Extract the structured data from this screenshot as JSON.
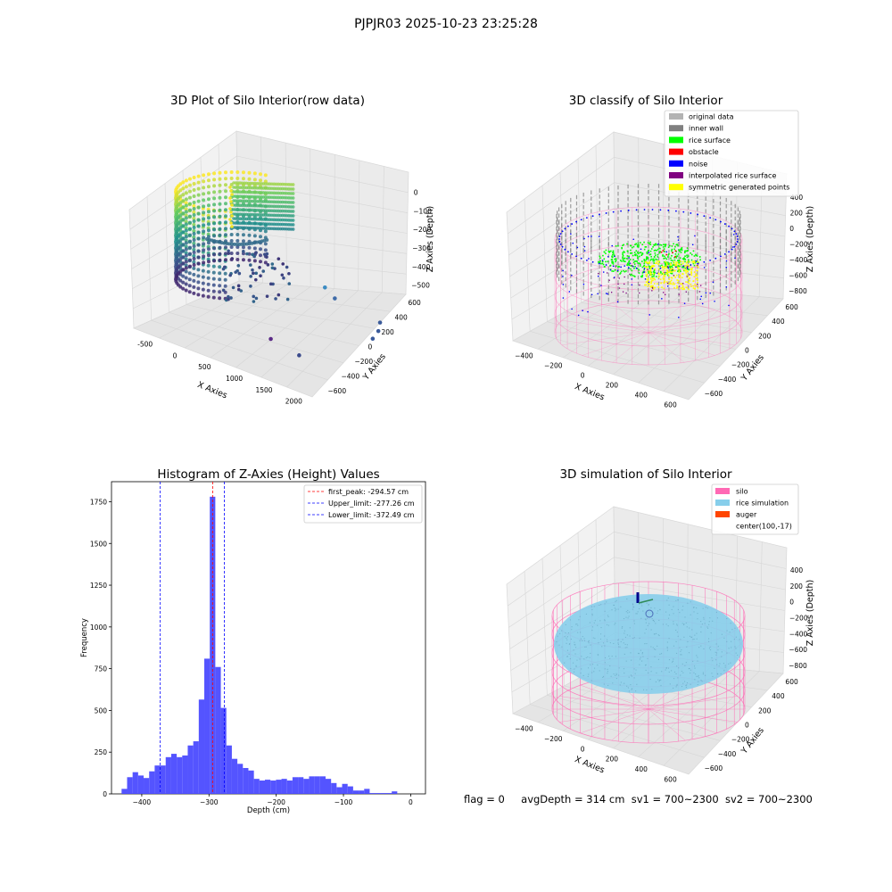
{
  "figure": {
    "title": "PJPJR03 2025-10-23 23:25:28",
    "status": {
      "flag": "flag = 0",
      "avg_depth": "avgDepth = 314 cm",
      "sv1": "sv1 = 700~2300",
      "sv2": "sv2 = 700~2300"
    }
  },
  "colors": {
    "histogram_bar": "#4b4bff",
    "first_peak_line": "#ff0000",
    "limit_lines": "#0000ff",
    "original_data": "#b3b3b3",
    "inner_wall": "#808080",
    "rice_surface": "#00ff00",
    "obstacle": "#ff0000",
    "noise": "#0000ff",
    "interpolated_rice_surface": "#800080",
    "symmetric_generated_points": "#ffff00",
    "silo": "#ff69b4",
    "rice_simulation": "#87ceeb",
    "auger": "#ff4500"
  },
  "chart_data": [
    {
      "type": "scatter",
      "title": "3D Plot of Silo Interior(row data)",
      "xlabel": "X Axies",
      "ylabel": "Y Axies",
      "zlabel": "Z Axies (Depth)",
      "x_ticks": [
        "-500",
        "0",
        "500",
        "1000",
        "1500",
        "2000"
      ],
      "y_ticks": [
        "600",
        "400",
        "200",
        "0",
        "−200",
        "−400",
        "−600"
      ],
      "z_ticks": [
        "0",
        "−100",
        "−200",
        "−300",
        "−400",
        "−500"
      ],
      "xlim": [
        -700,
        2100
      ],
      "ylim": [
        -700,
        700
      ],
      "zlim": [
        -530,
        0
      ],
      "colormap": "viridis",
      "outlier_points": [
        {
          "x": 1200,
          "y": 300,
          "z": -310,
          "color": "#3b8bc2"
        },
        {
          "x": 1300,
          "y": 350,
          "z": -350,
          "color": "#3e6ba8"
        },
        {
          "x": 1900,
          "y": 450,
          "z": -400,
          "color": "#3a5a9a"
        },
        {
          "x": 1950,
          "y": 380,
          "z": -420,
          "color": "#3a5a9a"
        },
        {
          "x": 1950,
          "y": 300,
          "z": -440,
          "color": "#3a5a9a"
        },
        {
          "x": 900,
          "y": -200,
          "z": -480,
          "color": "#5b2a86"
        },
        {
          "x": 1400,
          "y": -250,
          "z": -490,
          "color": "#3b4b8c"
        }
      ]
    },
    {
      "type": "scatter",
      "title": "3D classify of Silo Interior",
      "xlabel": "X Axies",
      "ylabel": "Y Axies",
      "zlabel": "Z Axies (Depth)",
      "x_ticks": [
        "−400",
        "−200",
        "0",
        "200",
        "400",
        "600"
      ],
      "y_ticks": [
        "600",
        "400",
        "200",
        "0",
        "−200",
        "−400",
        "−600"
      ],
      "z_ticks": [
        "400",
        "200",
        "0",
        "−200",
        "−400",
        "−600",
        "−800"
      ],
      "legend_position": "top-right",
      "legend": [
        {
          "label": "original data",
          "color": "#b3b3b3"
        },
        {
          "label": "inner wall",
          "color": "#808080"
        },
        {
          "label": "rice surface",
          "color": "#00ff00"
        },
        {
          "label": "obstacle",
          "color": "#ff0000"
        },
        {
          "label": "noise",
          "color": "#0000ff"
        },
        {
          "label": "interpolated rice surface",
          "color": "#800080"
        },
        {
          "label": "symmetric generated points",
          "color": "#ffff00"
        }
      ]
    },
    {
      "type": "bar",
      "title": "Histogram of Z-Axies (Height) Values",
      "xlabel": "Depth (cm)",
      "ylabel": "Frequency",
      "xlim": [
        -445,
        22
      ],
      "ylim": [
        0,
        1870
      ],
      "x_ticks": [
        -400,
        -300,
        -200,
        -100,
        0
      ],
      "y_ticks": [
        0,
        250,
        500,
        750,
        1000,
        1250,
        1500,
        1750
      ],
      "bin_start": -430,
      "bin_width": 8.2,
      "values": [
        30,
        100,
        130,
        110,
        95,
        135,
        170,
        170,
        220,
        240,
        220,
        230,
        290,
        315,
        565,
        810,
        1780,
        760,
        515,
        290,
        210,
        180,
        155,
        140,
        90,
        80,
        85,
        80,
        85,
        90,
        80,
        100,
        100,
        90,
        105,
        105,
        105,
        90,
        65,
        40,
        60,
        45,
        20,
        20,
        30,
        5,
        5,
        5,
        5,
        15
      ],
      "vlines": [
        {
          "label": "first_peak: -294.57 cm",
          "x": -294.57,
          "color": "#ff0000"
        },
        {
          "label": "Upper_limit: -277.26 cm",
          "x": -277.26,
          "color": "#0000ff"
        },
        {
          "label": "Lower_limit: -372.49 cm",
          "x": -372.49,
          "color": "#0000ff"
        }
      ],
      "legend_position": "top-right"
    },
    {
      "type": "scatter",
      "title": "3D simulation of Silo Interior",
      "xlabel": "X Axies",
      "ylabel": "Y Axies",
      "zlabel": "Z Axies (Depth)",
      "x_ticks": [
        "−400",
        "−200",
        "0",
        "200",
        "400",
        "600"
      ],
      "y_ticks": [
        "600",
        "400",
        "200",
        "0",
        "−200",
        "−400",
        "−600"
      ],
      "z_ticks": [
        "400",
        "200",
        "0",
        "−200",
        "−400",
        "−600",
        "−800"
      ],
      "legend_position": "top-right",
      "legend": [
        {
          "label": "silo",
          "color": "#ff69b4"
        },
        {
          "label": "rice simulation",
          "color": "#87ceeb"
        },
        {
          "label": "auger",
          "color": "#ff4500"
        },
        {
          "label": "center(100,-17)",
          "color": ""
        }
      ]
    }
  ]
}
